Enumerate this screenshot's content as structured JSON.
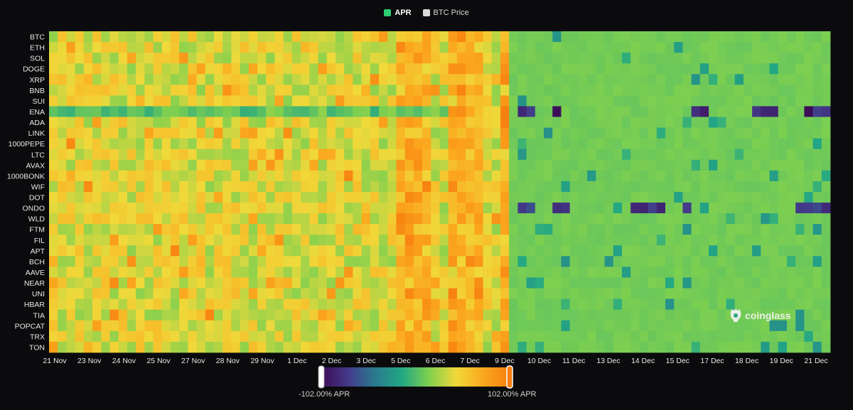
{
  "legend": {
    "items": [
      {
        "label": "APR",
        "color": "#2ecc71",
        "active": true
      },
      {
        "label": "BTC Price",
        "color": "#d9d9d9",
        "active": false
      }
    ]
  },
  "scale": {
    "min_label": "-102.00% APR",
    "max_label": "102.00% APR",
    "min": -102,
    "max": 102
  },
  "watermark": {
    "text": "coinglass"
  },
  "chart_data": {
    "type": "heatmap",
    "rows": [
      "BTC",
      "ETH",
      "SOL",
      "DOGE",
      "XRP",
      "BNB",
      "SUI",
      "ENA",
      "ADA",
      "LINK",
      "1000PEPE",
      "LTC",
      "AVAX",
      "1000BONK",
      "WIF",
      "DOT",
      "ONDO",
      "WLD",
      "FTM",
      "FIL",
      "APT",
      "BCH",
      "AAVE",
      "NEAR",
      "UNI",
      "HBAR",
      "TIA",
      "POPCAT",
      "TRX",
      "TON"
    ],
    "x_ticks": [
      "21 Nov",
      "23 Nov",
      "24 Nov",
      "25 Nov",
      "27 Nov",
      "28 Nov",
      "29 Nov",
      "1 Dec",
      "2 Dec",
      "3 Dec",
      "5 Dec",
      "6 Dec",
      "7 Dec",
      "9 Dec",
      "10 Dec",
      "11 Dec",
      "13 Dec",
      "14 Dec",
      "15 Dec",
      "17 Dec",
      "18 Dec",
      "19 Dec",
      "21 Dec"
    ],
    "columns": 90,
    "value_range": [
      -102,
      102
    ],
    "colorscale": [
      "#3d0a54",
      "#433a8a",
      "#2a7a8e",
      "#22a784",
      "#7fd04f",
      "#f0d93a",
      "#fba81e",
      "#f77f10"
    ],
    "periods": [
      {
        "range": "21 Nov - 9 Dec",
        "typical_apr": "10% to 70%",
        "peak_apr": 100
      },
      {
        "range": "10 Dec - 21 Dec",
        "typical_apr": "about 10%",
        "min_apr": -102
      }
    ],
    "notable": [
      {
        "row": "ENA",
        "period": "10 Dec - 21 Dec",
        "apr": "negative, down to -102%"
      },
      {
        "row": "ONDO",
        "period": "10 Dec - 21 Dec",
        "apr": "negative, down to about -95%"
      }
    ]
  }
}
